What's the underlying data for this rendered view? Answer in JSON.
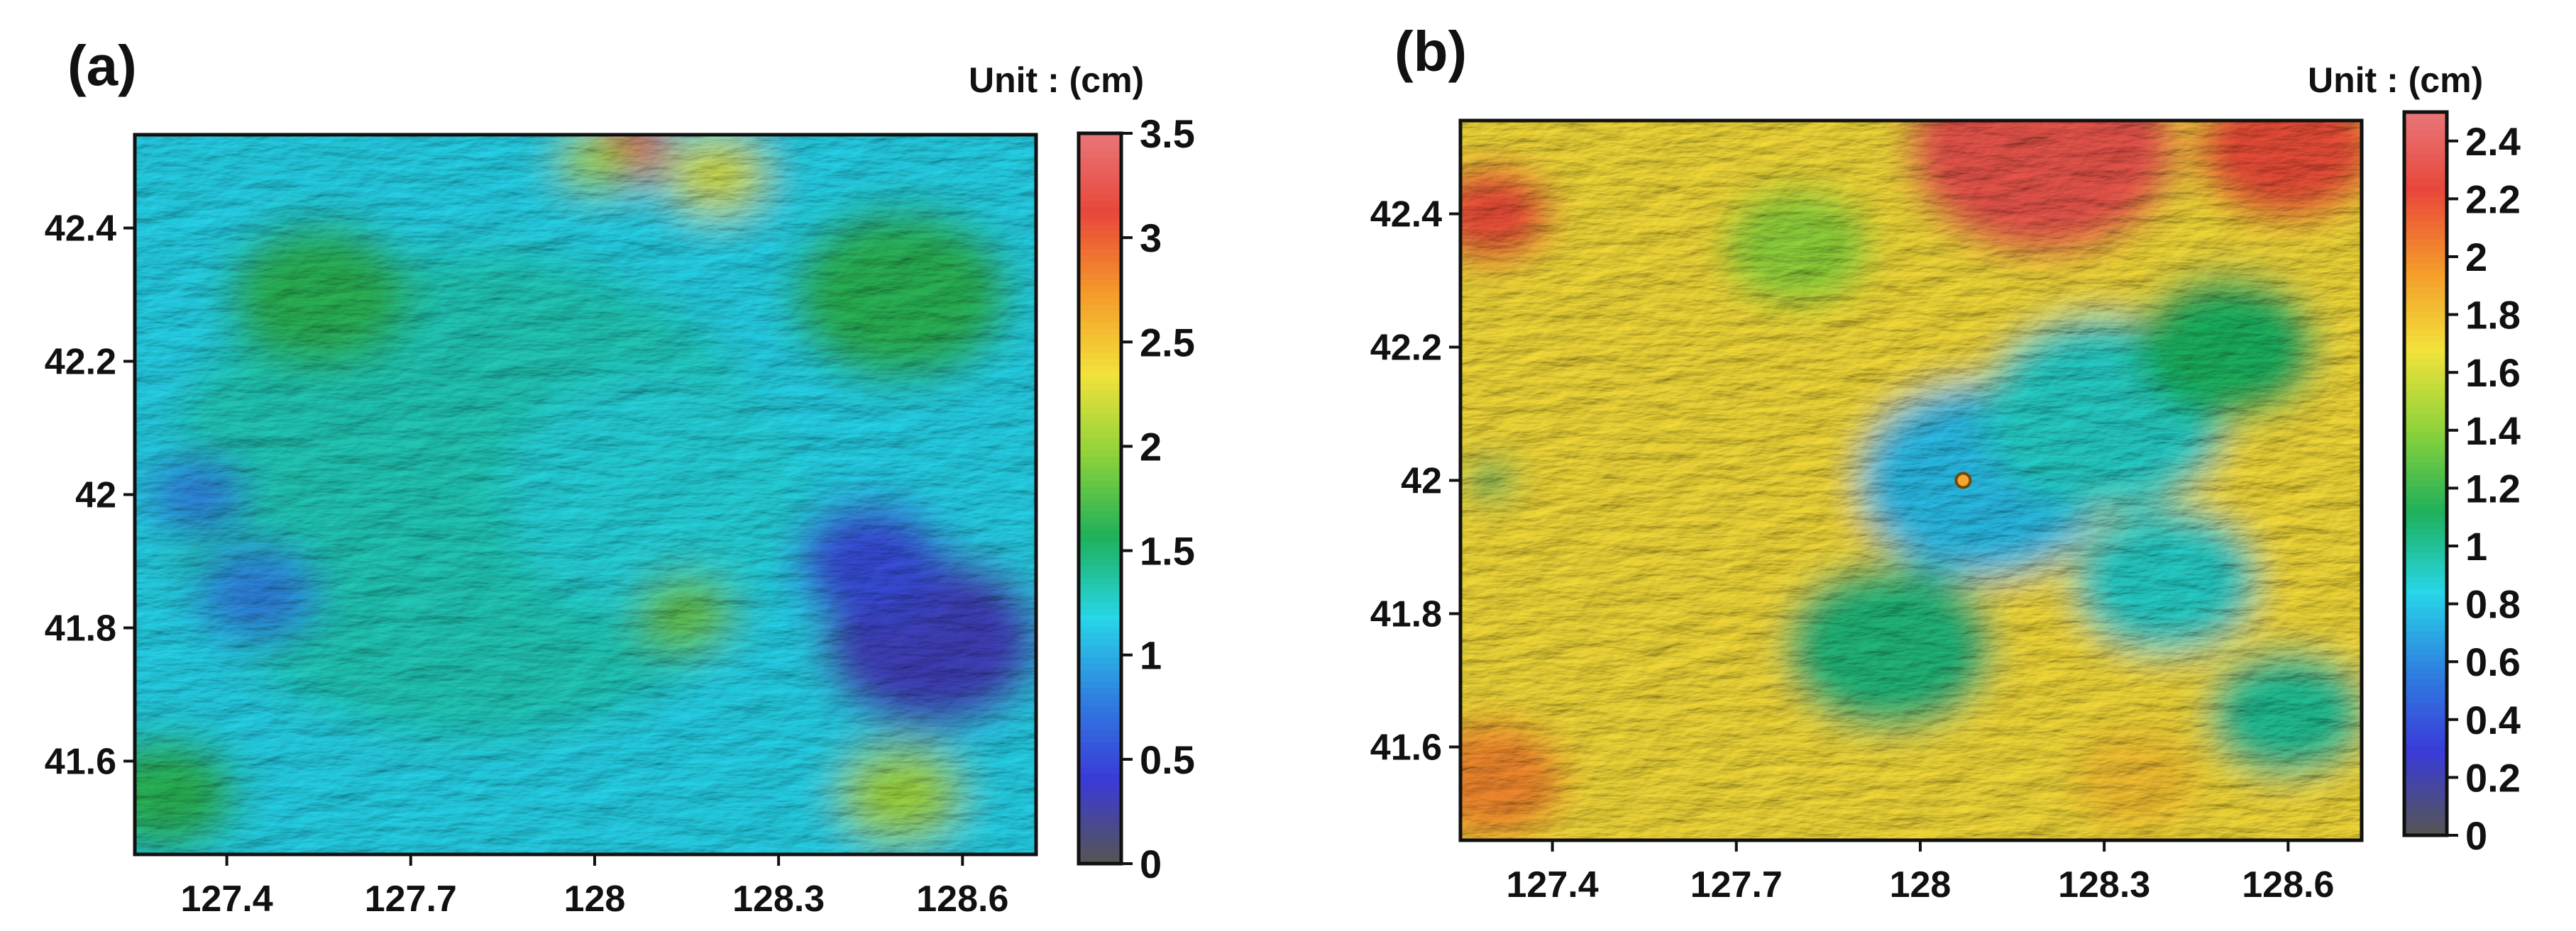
{
  "chart_data": [
    {
      "type": "heatmap",
      "panel_label": "(a)",
      "unit_label": "Unit : (cm)",
      "x_ticks": [
        "127.4",
        "127.7",
        "128",
        "128.3",
        "128.6"
      ],
      "x_tick_values": [
        127.4,
        127.7,
        128.0,
        128.3,
        128.6
      ],
      "y_ticks": [
        "42.4",
        "42.2",
        "42",
        "41.8",
        "41.6"
      ],
      "y_tick_values": [
        42.4,
        42.2,
        42.0,
        41.8,
        41.6
      ],
      "xlim": [
        127.25,
        128.72
      ],
      "ylim": [
        41.46,
        42.54
      ],
      "colorbar_ticks": [
        "3.5",
        "3",
        "2.5",
        "2",
        "1.5",
        "1",
        "0.5",
        "0"
      ],
      "colorbar_values": [
        3.5,
        3.0,
        2.5,
        2.0,
        1.5,
        1.0,
        0.5,
        0.0
      ],
      "colorbar_range": [
        0,
        3.5
      ],
      "features": [
        {
          "lon": 127.8,
          "lat": 42.0,
          "value": 1.3,
          "radius_deg": 0.5
        },
        {
          "lon": 128.1,
          "lat": 42.0,
          "value": 1.2,
          "radius_deg": 0.25
        },
        {
          "lon": 128.55,
          "lat": 41.78,
          "value": 0.3,
          "radius_deg": 0.18
        },
        {
          "lon": 128.45,
          "lat": 41.9,
          "value": 0.5,
          "radius_deg": 0.12
        },
        {
          "lon": 127.35,
          "lat": 42.0,
          "value": 0.8,
          "radius_deg": 0.08
        },
        {
          "lon": 127.45,
          "lat": 41.85,
          "value": 0.8,
          "radius_deg": 0.1
        },
        {
          "lon": 128.05,
          "lat": 42.52,
          "value": 3.1,
          "radius_deg": 0.07
        },
        {
          "lon": 128.2,
          "lat": 42.48,
          "value": 2.2,
          "radius_deg": 0.08
        },
        {
          "lon": 128.0,
          "lat": 42.5,
          "value": 2.0,
          "radius_deg": 0.06
        },
        {
          "lon": 127.55,
          "lat": 42.3,
          "value": 1.6,
          "radius_deg": 0.15
        },
        {
          "lon": 128.15,
          "lat": 41.82,
          "value": 1.8,
          "radius_deg": 0.08
        },
        {
          "lon": 128.5,
          "lat": 41.55,
          "value": 2.0,
          "radius_deg": 0.1
        },
        {
          "lon": 128.5,
          "lat": 42.3,
          "value": 1.6,
          "radius_deg": 0.18
        },
        {
          "lon": 127.3,
          "lat": 41.55,
          "value": 1.6,
          "radius_deg": 0.12
        }
      ],
      "base_value": 1.15
    },
    {
      "type": "heatmap",
      "panel_label": "(b)",
      "unit_label": "Unit : (cm)",
      "x_ticks": [
        "127.4",
        "127.7",
        "128",
        "128.3",
        "128.6"
      ],
      "x_tick_values": [
        127.4,
        127.7,
        128.0,
        128.3,
        128.6
      ],
      "y_ticks": [
        "42.4",
        "42.2",
        "42",
        "41.8",
        "41.6"
      ],
      "y_tick_values": [
        42.4,
        42.2,
        42.0,
        41.8,
        41.6
      ],
      "xlim": [
        127.25,
        128.72
      ],
      "ylim": [
        41.46,
        42.54
      ],
      "colorbar_ticks": [
        "2.4",
        "2.2",
        "2",
        "1.8",
        "1.6",
        "1.4",
        "1.2",
        "1",
        "0.8",
        "0.6",
        "0.4",
        "0.2",
        "0"
      ],
      "colorbar_values": [
        2.4,
        2.2,
        2.0,
        1.8,
        1.6,
        1.4,
        1.2,
        1.0,
        0.8,
        0.6,
        0.4,
        0.2,
        0.0
      ],
      "colorbar_range": [
        0,
        2.5
      ],
      "features": [
        {
          "lon": 128.1,
          "lat": 42.0,
          "value": 0.75,
          "radius_deg": 0.2
        },
        {
          "lon": 128.3,
          "lat": 42.1,
          "value": 0.9,
          "radius_deg": 0.2
        },
        {
          "lon": 128.4,
          "lat": 41.85,
          "value": 0.9,
          "radius_deg": 0.15
        },
        {
          "lon": 127.95,
          "lat": 41.75,
          "value": 1.05,
          "radius_deg": 0.17
        },
        {
          "lon": 128.6,
          "lat": 41.65,
          "value": 1.0,
          "radius_deg": 0.13
        },
        {
          "lon": 128.5,
          "lat": 42.2,
          "value": 1.1,
          "radius_deg": 0.15
        },
        {
          "lon": 127.8,
          "lat": 42.35,
          "value": 1.4,
          "radius_deg": 0.12
        },
        {
          "lon": 128.2,
          "lat": 42.5,
          "value": 2.3,
          "radius_deg": 0.22
        },
        {
          "lon": 128.6,
          "lat": 42.5,
          "value": 2.2,
          "radius_deg": 0.15
        },
        {
          "lon": 127.3,
          "lat": 42.4,
          "value": 2.2,
          "radius_deg": 0.1
        },
        {
          "lon": 127.3,
          "lat": 41.55,
          "value": 2.0,
          "radius_deg": 0.12
        },
        {
          "lon": 127.45,
          "lat": 41.8,
          "value": 1.7,
          "radius_deg": 0.15
        },
        {
          "lon": 128.35,
          "lat": 41.55,
          "value": 1.8,
          "radius_deg": 0.1
        },
        {
          "lon": 127.3,
          "lat": 42.0,
          "value": 1.1,
          "radius_deg": 0.04
        }
      ],
      "base_value": 1.7,
      "marker": {
        "lon": 128.07,
        "lat": 42.0,
        "value": 1.9
      }
    }
  ],
  "colors": {
    "colormap": [
      "#555555",
      "#3a3ad8",
      "#2f7fe0",
      "#27d6e8",
      "#1fb05a",
      "#8cd23a",
      "#f2e23a",
      "#f59a2a",
      "#e8463a",
      "#e8787a"
    ],
    "frame": "#111111",
    "background": "#ffffff"
  }
}
